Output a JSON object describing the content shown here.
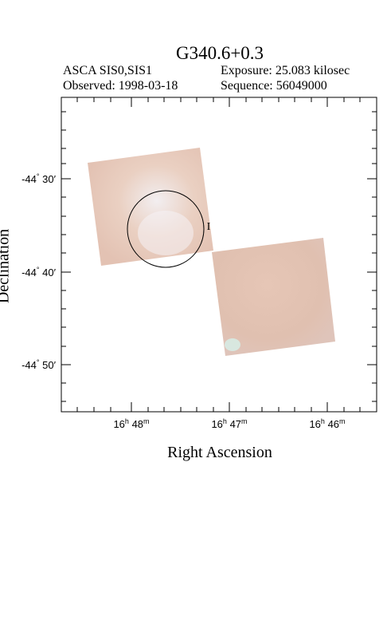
{
  "title": "G340.6+0.3",
  "instrument": "ASCA SIS0,SIS1",
  "observed": "Observed: 1998-03-18",
  "exposure": "Exposure: 25.083 kilosec",
  "sequence": "Sequence: 56049000",
  "axes": {
    "xlabel": "Right Ascension",
    "ylabel": "Declination",
    "x_ticks": [
      {
        "h": "16",
        "m": "48"
      },
      {
        "h": "16",
        "m": "47"
      },
      {
        "h": "16",
        "m": "46"
      }
    ],
    "y_ticks": [
      {
        "deg": "-44",
        "min": "30"
      },
      {
        "deg": "-44",
        "min": "40"
      },
      {
        "deg": "-44",
        "min": "50"
      }
    ]
  },
  "marker": "I",
  "colors": {
    "image_tint": "#e8c8b8",
    "image_highlight": "#f4f1f4",
    "image_cyan_spot": "#d8f1ea"
  }
}
